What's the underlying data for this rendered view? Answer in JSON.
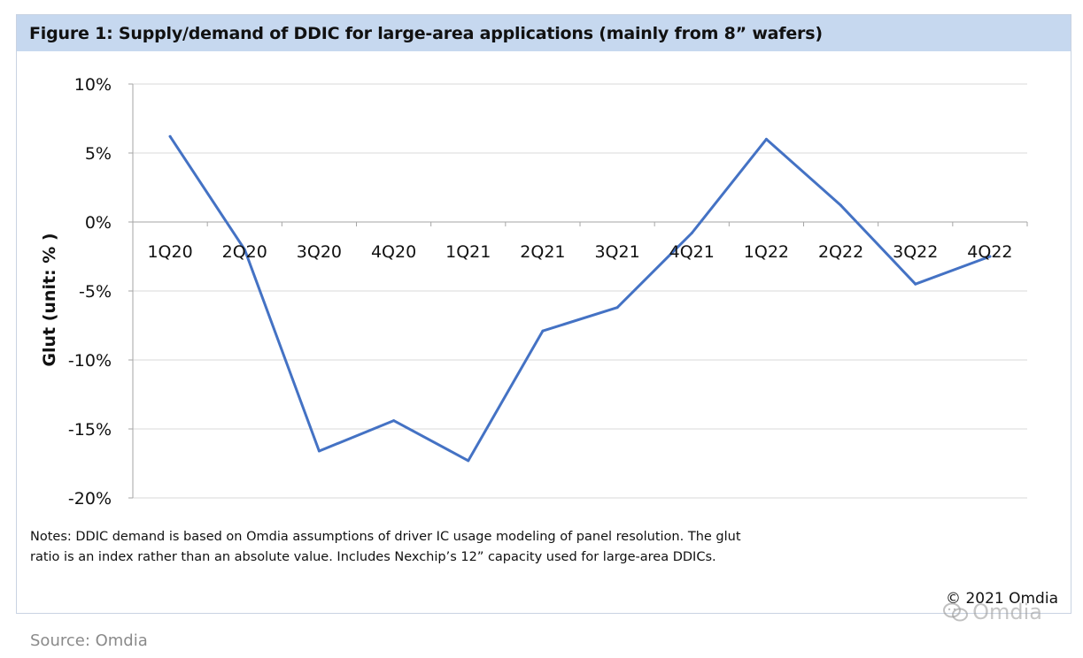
{
  "figure": {
    "title": "Figure 1: Supply/demand of DDIC for large-area applications (mainly from 8” wafers)",
    "notes_line1": "Notes: DDIC demand is based on Omdia assumptions of driver IC usage modeling of panel resolution. The glut",
    "notes_line2": "ratio is an index rather than an absolute value. Includes Nexchip’s 12” capacity used for large-area DDICs.",
    "copyright": "© 2021 Omdia",
    "watermark": "Omdia",
    "source": "Source: Omdia"
  },
  "colors": {
    "title_bg": "#c6d8ef",
    "line": "#4472c4",
    "grid": "#d9d9d9",
    "axis": "#a6a6a6"
  },
  "chart_data": {
    "type": "line",
    "title": "Figure 1: Supply/demand of DDIC for large-area applications (mainly from 8” wafers)",
    "xlabel": "",
    "ylabel": "Glut (unit: % )",
    "categories": [
      "1Q20",
      "2Q20",
      "3Q20",
      "4Q20",
      "1Q21",
      "2Q21",
      "3Q21",
      "4Q21",
      "1Q22",
      "2Q22",
      "3Q22",
      "4Q22"
    ],
    "series": [
      {
        "name": "Glut",
        "values": [
          6.2,
          -2.0,
          -16.6,
          -14.4,
          -17.3,
          -7.9,
          -6.2,
          -0.8,
          6.0,
          1.2,
          -4.5,
          -2.5
        ]
      }
    ],
    "ylim": [
      -20,
      10
    ],
    "yticks": [
      10,
      5,
      0,
      -5,
      -10,
      -15,
      -20
    ],
    "ytick_labels": [
      "10%",
      "5%",
      "0%",
      "-5%",
      "-10%",
      "-15%",
      "-20%"
    ],
    "grid": true,
    "legend": "none"
  }
}
